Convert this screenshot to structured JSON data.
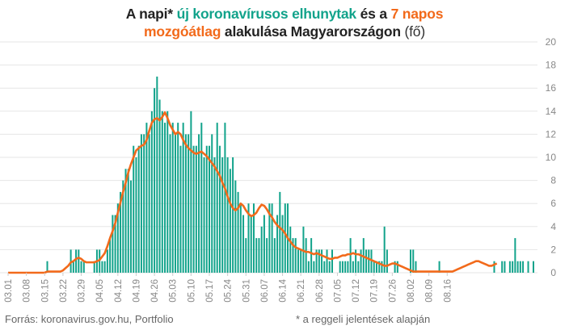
{
  "title": {
    "part1": "A napi* ",
    "part2": "új koronavírusos elhunytak",
    "part3": " és a ",
    "part4": "7 napos",
    "part5": "mozgóátlag",
    "part6": " alakulása Magyarországon",
    "part7": " (fő)"
  },
  "footer": {
    "source": "Forrás: koronavirus.gov.hu, Portfolio",
    "note": "* a reggeli jelentések alapján"
  },
  "colors": {
    "bar": "#12a38b",
    "line": "#f26a1b",
    "grid": "#e6e6e6",
    "text": "#888888"
  },
  "chart_data": {
    "type": "bar",
    "start_date": "03.01",
    "ylim": [
      0,
      20
    ],
    "y_ticks": [
      0,
      2,
      4,
      6,
      8,
      10,
      12,
      14,
      16,
      18,
      20
    ],
    "x_tick_labels": [
      "03.01",
      "03.08",
      "03.15",
      "03.22",
      "03.29",
      "04.05",
      "04.12",
      "04.19",
      "04.26",
      "05.03",
      "05.10",
      "05.17",
      "05.24",
      "05.31",
      "06.07",
      "06.14",
      "06.21",
      "06.28",
      "07.05",
      "07.12",
      "07.19",
      "07.26",
      "08.02",
      "08.09",
      "08.16"
    ],
    "series": [
      {
        "name": "új koronavírusos elhunytak",
        "kind": "bar",
        "values": [
          0,
          0,
          0,
          0,
          0,
          0,
          0,
          0,
          0,
          0,
          0,
          0,
          0,
          0,
          0,
          1,
          0,
          0,
          0,
          0,
          0,
          0,
          0,
          0,
          2,
          1,
          2,
          2,
          1,
          1,
          0,
          0,
          0,
          1,
          2,
          2,
          1,
          1,
          2,
          3,
          5,
          5,
          6,
          7,
          8,
          9,
          9,
          8,
          11,
          10,
          11,
          12,
          12,
          13,
          12,
          14,
          16,
          17,
          15,
          14,
          13,
          14,
          12,
          13,
          12,
          13,
          11,
          13,
          12,
          12,
          14,
          11,
          11,
          12,
          13,
          10,
          11,
          11,
          12,
          10,
          13,
          11,
          10,
          13,
          10,
          9,
          10,
          8,
          7,
          6,
          5,
          3,
          6,
          5,
          6,
          3,
          3,
          4,
          5,
          3,
          6,
          6,
          3,
          5,
          7,
          5,
          6,
          6,
          4,
          3,
          3,
          2,
          2,
          4,
          3,
          1,
          3,
          1,
          2,
          2,
          2,
          1,
          2,
          1,
          2,
          0,
          0,
          1,
          1,
          1,
          1,
          3,
          1,
          2,
          1,
          2,
          3,
          2,
          2,
          2,
          1,
          1,
          1,
          1,
          4,
          2,
          0,
          0,
          1,
          1,
          0,
          0,
          0,
          0,
          2,
          2,
          1,
          0,
          0,
          0,
          0,
          0,
          0,
          0,
          0,
          1,
          0,
          0,
          0,
          0,
          0,
          0,
          0,
          0,
          0,
          0,
          0,
          0,
          0,
          0,
          0,
          0,
          0,
          0,
          0,
          0,
          1,
          0,
          0,
          1,
          1,
          0,
          1,
          1,
          3,
          1,
          1,
          1,
          0,
          1,
          0,
          1
        ]
      },
      {
        "name": "7 napos mozgóátlag",
        "kind": "line",
        "values": [
          0,
          0,
          0,
          0,
          0,
          0,
          0,
          0,
          0,
          0,
          0,
          0,
          0,
          0,
          0,
          0.1,
          0.1,
          0.1,
          0.1,
          0.1,
          0.1,
          0.2,
          0.4,
          0.6,
          0.9,
          1.0,
          1.2,
          1.3,
          1.2,
          1.0,
          0.9,
          0.9,
          0.9,
          0.9,
          1.0,
          1.1,
          1.4,
          1.7,
          2.3,
          3.0,
          3.6,
          4.3,
          5.2,
          6.1,
          7.0,
          7.8,
          8.7,
          9.4,
          10.0,
          10.6,
          10.8,
          11.0,
          11.1,
          11.5,
          12.3,
          13.0,
          13.3,
          13.4,
          13.2,
          13.5,
          13.9,
          13.4,
          12.8,
          12.4,
          12.0,
          12.2,
          12.0,
          11.5,
          11.1,
          10.8,
          10.6,
          10.4,
          10.3,
          10.4,
          10.5,
          10.3,
          10.1,
          9.8,
          9.5,
          9.2,
          8.8,
          8.4,
          7.8,
          7.3,
          6.6,
          6.0,
          5.6,
          5.4,
          5.6,
          6.0,
          5.8,
          5.4,
          5.1,
          4.9,
          5.0,
          5.2,
          5.6,
          5.9,
          5.8,
          5.5,
          5.1,
          4.8,
          4.4,
          4.1,
          3.9,
          3.7,
          3.4,
          3.0,
          2.7,
          2.4,
          2.2,
          2.1,
          2.0,
          1.9,
          1.8,
          1.8,
          1.7,
          1.6,
          1.7,
          1.6,
          1.5,
          1.4,
          1.3,
          1.2,
          1.2,
          1.3,
          1.3,
          1.4,
          1.5,
          1.5,
          1.6,
          1.6,
          1.7,
          1.6,
          1.6,
          1.5,
          1.4,
          1.3,
          1.2,
          1.1,
          1.0,
          0.9,
          0.8,
          0.7,
          0.6,
          0.6,
          0.7,
          0.8,
          0.8,
          0.7,
          0.6,
          0.5,
          0.4,
          0.3,
          0.2,
          0.1,
          0.1,
          0.1,
          0.1,
          0.1,
          0.1,
          0.1,
          0.1,
          0.1,
          0.1,
          0.1,
          0.1,
          0.1,
          0.1,
          0.1,
          0.1,
          0.2,
          0.3,
          0.4,
          0.5,
          0.6,
          0.7,
          0.8,
          0.9,
          1.0,
          1.0,
          0.9,
          0.8,
          0.7,
          0.6,
          0.6,
          0.7,
          0.8
        ]
      }
    ]
  }
}
